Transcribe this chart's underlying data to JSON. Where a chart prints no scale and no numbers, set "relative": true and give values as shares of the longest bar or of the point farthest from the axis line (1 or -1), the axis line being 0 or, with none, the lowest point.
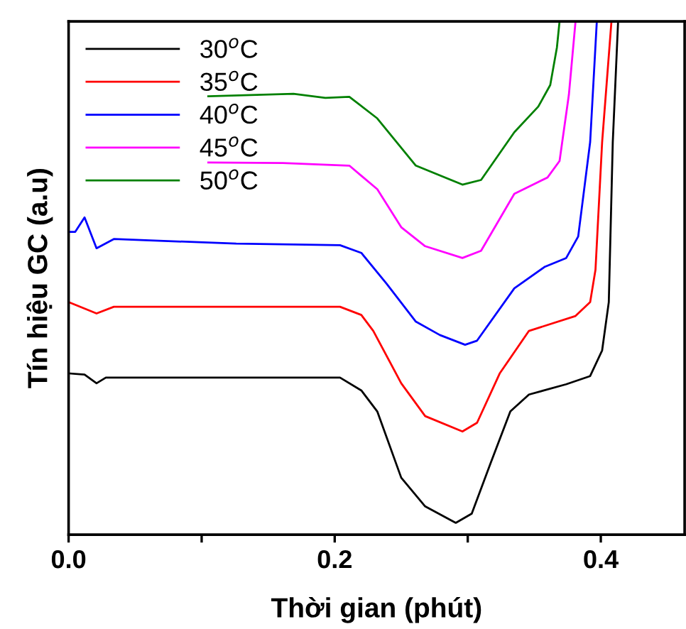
{
  "chart_data": {
    "type": "line",
    "xlabel": "Thời gian (phút)",
    "ylabel": "Tín hiệu GC (a.u)",
    "relative": true,
    "tick_labels": "x",
    "grid": false,
    "legend": "top left",
    "marker": "none",
    "line_style": "solid",
    "xlim": [
      0,
      0.463
    ],
    "xticks": [
      {
        "value": 0,
        "label": "0.0"
      },
      {
        "value": 0.1,
        "label": null
      },
      {
        "value": 0.2,
        "label": "0.2"
      },
      {
        "value": 0.3,
        "label": null
      },
      {
        "value": 0.4,
        "label": "0.4"
      }
    ],
    "series": [
      {
        "name": "30$^{o}$C",
        "color": "#000000",
        "x": [
          0.001,
          0.012,
          0.021,
          0.028,
          0.108,
          0.204,
          0.22,
          0.232,
          0.25,
          0.268,
          0.291,
          0.303,
          0.317,
          0.332,
          0.346,
          0.374,
          0.392,
          0.401,
          0.406,
          0.409,
          0.413
        ],
        "values": [
          0.314,
          0.312,
          0.295,
          0.306,
          0.306,
          0.306,
          0.281,
          0.24,
          0.111,
          0.055,
          0.023,
          0.041,
          0.138,
          0.24,
          0.273,
          0.293,
          0.309,
          0.359,
          0.453,
          0.765,
          1.0
        ]
      },
      {
        "name": "35$^{o}$C",
        "color": "#ff0000",
        "x": [
          0.001,
          0.021,
          0.034,
          0.204,
          0.22,
          0.229,
          0.25,
          0.268,
          0.296,
          0.307,
          0.324,
          0.346,
          0.381,
          0.392,
          0.396,
          0.401,
          0.408
        ],
        "values": [
          0.452,
          0.431,
          0.444,
          0.444,
          0.428,
          0.397,
          0.295,
          0.231,
          0.201,
          0.218,
          0.314,
          0.397,
          0.426,
          0.453,
          0.516,
          0.765,
          1.0
        ]
      },
      {
        "name": "40$^{o}$C",
        "color": "#0000ff",
        "x": [
          0.001,
          0.005,
          0.012,
          0.021,
          0.034,
          0.126,
          0.204,
          0.22,
          0.239,
          0.261,
          0.279,
          0.298,
          0.307,
          0.335,
          0.358,
          0.374,
          0.383,
          0.392,
          0.397
        ],
        "values": [
          0.59,
          0.59,
          0.618,
          0.558,
          0.576,
          0.567,
          0.564,
          0.549,
          0.489,
          0.415,
          0.389,
          0.37,
          0.378,
          0.48,
          0.522,
          0.539,
          0.581,
          0.765,
          1.0
        ]
      },
      {
        "name": "45$^{o}$C",
        "color": "#ff00ff",
        "x": [
          0.105,
          0.161,
          0.211,
          0.232,
          0.25,
          0.268,
          0.296,
          0.31,
          0.335,
          0.36,
          0.369,
          0.376,
          0.381
        ],
        "values": [
          0.725,
          0.724,
          0.719,
          0.673,
          0.599,
          0.562,
          0.539,
          0.553,
          0.664,
          0.696,
          0.728,
          0.857,
          1.0
        ]
      },
      {
        "name": "50$^{o}$C",
        "color": "#008000",
        "x": [
          0.105,
          0.169,
          0.193,
          0.211,
          0.232,
          0.261,
          0.296,
          0.31,
          0.335,
          0.353,
          0.362,
          0.367,
          0.369
        ],
        "values": [
          0.854,
          0.859,
          0.851,
          0.853,
          0.811,
          0.719,
          0.682,
          0.691,
          0.784,
          0.834,
          0.876,
          0.949,
          1.0
        ]
      }
    ]
  }
}
